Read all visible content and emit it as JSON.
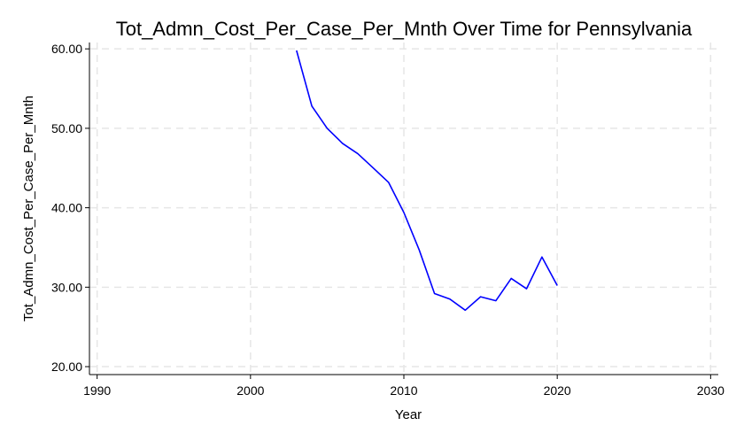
{
  "chart_data": {
    "type": "line",
    "title": "Tot_Admn_Cost_Per_Case_Per_Mnth Over Time for Pennsylvania",
    "xlabel": "Year",
    "ylabel": "Tot_Admn_Cost_Per_Case_Per_Mnth",
    "xlim": [
      1989.5,
      2030.5
    ],
    "ylim": [
      19.0,
      60.8
    ],
    "xticks": [
      1990,
      2000,
      2010,
      2020,
      2030
    ],
    "xtick_labels": [
      "1990",
      "2000",
      "2010",
      "2020",
      "2030"
    ],
    "yticks": [
      20,
      30,
      40,
      50,
      60
    ],
    "ytick_labels": [
      "20.00",
      "30.00",
      "40.00",
      "50.00",
      "60.00"
    ],
    "grid": true,
    "legend": false,
    "line_color": "#0000ff",
    "grid_color": "#e6e6e6",
    "series": [
      {
        "x": [
          2003,
          2004,
          2005,
          2006,
          2007,
          2008,
          2009,
          2010,
          2011,
          2012,
          2013,
          2014,
          2015,
          2016,
          2017,
          2018,
          2019,
          2020
        ],
        "y": [
          59.8,
          52.8,
          50.0,
          48.1,
          46.8,
          45.0,
          43.2,
          39.4,
          34.7,
          29.2,
          28.5,
          27.1,
          28.8,
          28.3,
          31.1,
          29.8,
          33.8,
          30.2
        ]
      }
    ]
  }
}
